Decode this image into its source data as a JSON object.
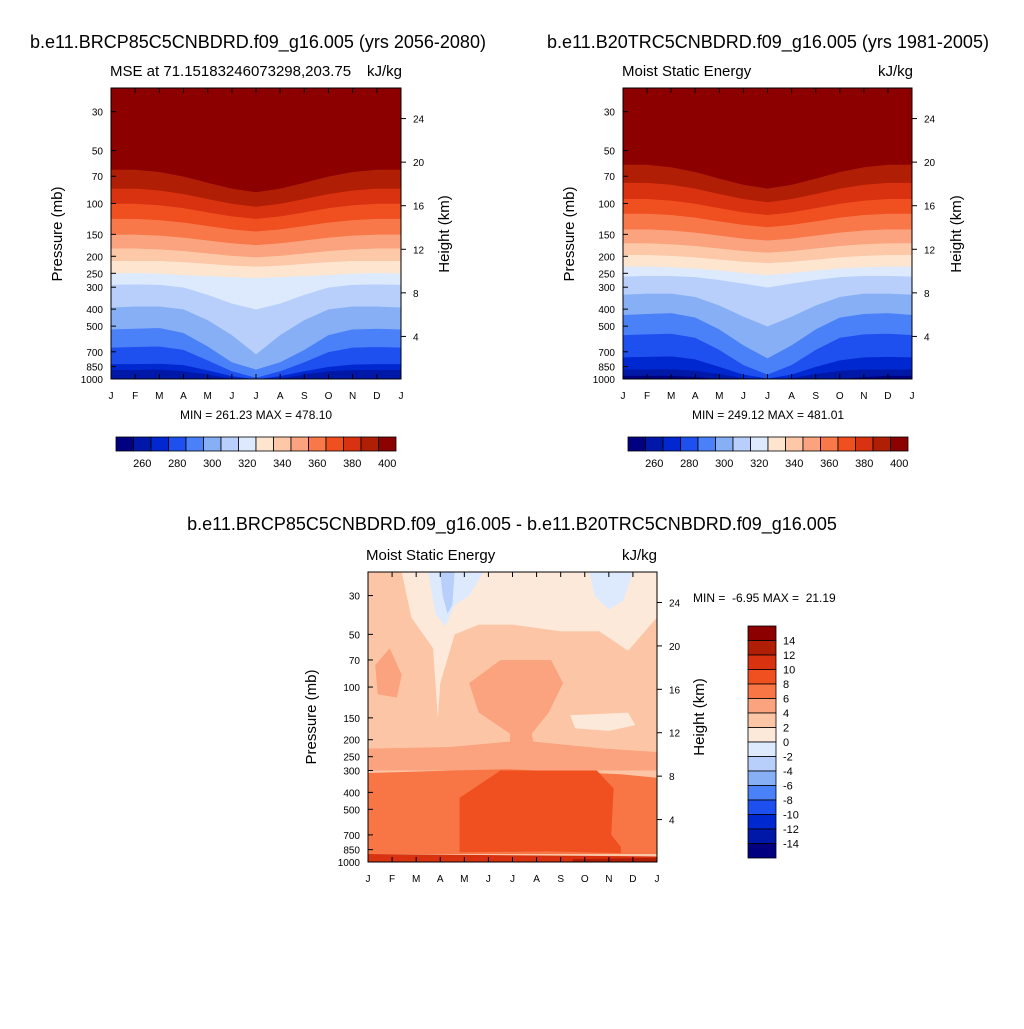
{
  "colors": {
    "ramp_abs": [
      "#000080",
      "#0018a8",
      "#0028d0",
      "#1e50f0",
      "#4a80f8",
      "#86aff6",
      "#b8cffb",
      "#ddeafe",
      "#fde5d0",
      "#fcc8a8",
      "#fba37e",
      "#f8784a",
      "#f05020",
      "#d83210",
      "#b01e06",
      "#8c0000"
    ],
    "ramp_diff": [
      "#000080",
      "#0018a8",
      "#0028d0",
      "#1e50f0",
      "#4a80f8",
      "#86aff6",
      "#b8cffb",
      "#ddeafe",
      "#fde9d9",
      "#fcc6a6",
      "#fba37e",
      "#f87646",
      "#f05020",
      "#d83210",
      "#b01e06",
      "#8c0000"
    ]
  },
  "chart_data": [
    {
      "id": "future",
      "type": "contour",
      "title": "b.e11.BRCP85C5CNBDRD.f09_g16.005 (yrs 2056-2080)",
      "left_label": "MSE at 71.15183246073298,203.75",
      "right_label": "kJ/kg",
      "xlabel": "",
      "ylabel": "Pressure (mb)",
      "y2label": "Height (km)",
      "x_ticks": [
        "J",
        "F",
        "M",
        "A",
        "M",
        "J",
        "J",
        "A",
        "S",
        "O",
        "N",
        "D",
        "J"
      ],
      "y_ticks": [
        "30",
        "50",
        "70",
        "100",
        "150",
        "200",
        "250",
        "300",
        "400",
        "500",
        "700",
        "850",
        "1000"
      ],
      "y2_ticks": [
        "24",
        "20",
        "16",
        "12",
        "8",
        "4"
      ],
      "ylim_mb": [
        1000,
        22
      ],
      "stats": "MIN = 261.23 MAX = 478.10",
      "colorbar_levels": [
        255,
        260,
        265,
        270,
        275,
        280,
        285,
        290,
        295,
        300,
        305,
        310,
        315,
        320,
        325,
        330,
        335,
        340,
        345,
        350,
        355,
        360,
        365,
        370,
        375,
        380,
        385,
        390,
        395,
        400,
        405
      ],
      "colorbar_tick_labels": [
        "260",
        "280",
        "300",
        "320",
        "340",
        "360",
        "380",
        "400"
      ],
      "contour_levels": [
        260,
        270,
        280,
        290,
        300,
        310,
        320,
        330,
        340,
        350,
        360,
        370,
        380,
        390,
        400
      ],
      "boundary_levels_mb": {
        "260": [
          1000,
          1000,
          1000,
          1000,
          1000,
          1000,
          1000,
          1000,
          1000,
          1000,
          1000,
          1000,
          1000
        ],
        "270": [
          885,
          885,
          880,
          900,
          940,
          990,
          1000,
          990,
          940,
          900,
          885,
          885,
          885
        ],
        "280": [
          820,
          820,
          815,
          830,
          890,
          960,
          1000,
          960,
          900,
          850,
          825,
          820,
          820
        ],
        "290": [
          660,
          655,
          650,
          680,
          780,
          900,
          980,
          900,
          800,
          700,
          660,
          655,
          660
        ],
        "300": [
          520,
          515,
          510,
          545,
          650,
          800,
          880,
          800,
          680,
          560,
          520,
          515,
          520
        ],
        "310": [
          390,
          385,
          385,
          400,
          460,
          560,
          720,
          560,
          460,
          400,
          385,
          385,
          390
        ],
        "320": [
          290,
          288,
          290,
          300,
          330,
          370,
          400,
          370,
          330,
          300,
          290,
          288,
          290
        ],
        "330": [
          250,
          248,
          250,
          255,
          258,
          262,
          265,
          262,
          258,
          255,
          250,
          248,
          250
        ],
        "340": [
          212,
          212,
          212,
          215,
          220,
          225,
          228,
          225,
          220,
          215,
          212,
          212,
          212
        ],
        "350": [
          180,
          180,
          182,
          186,
          192,
          198,
          202,
          198,
          192,
          186,
          182,
          180,
          180
        ],
        "360": [
          150,
          150,
          152,
          156,
          162,
          168,
          172,
          168,
          162,
          156,
          152,
          150,
          150
        ],
        "370": [
          122,
          122,
          124,
          128,
          134,
          140,
          144,
          140,
          134,
          128,
          124,
          122,
          122
        ],
        "380": [
          100,
          100,
          102,
          106,
          112,
          118,
          122,
          118,
          112,
          106,
          102,
          100,
          100
        ],
        "390": [
          82,
          82,
          84,
          88,
          94,
          100,
          104,
          100,
          94,
          88,
          84,
          82,
          82
        ],
        "400": [
          64,
          64,
          66,
          70,
          76,
          82,
          86,
          82,
          76,
          70,
          66,
          64,
          64
        ]
      }
    },
    {
      "id": "historical",
      "type": "contour",
      "title": "b.e11.B20TRC5CNBDRD.f09_g16.005 (yrs 1981-2005)",
      "left_label": "Moist Static Energy",
      "right_label": "kJ/kg",
      "xlabel": "",
      "ylabel": "Pressure (mb)",
      "y2label": "Height (km)",
      "x_ticks": [
        "J",
        "F",
        "M",
        "A",
        "M",
        "J",
        "J",
        "A",
        "S",
        "O",
        "N",
        "D",
        "J"
      ],
      "y_ticks": [
        "30",
        "50",
        "70",
        "100",
        "150",
        "200",
        "250",
        "300",
        "400",
        "500",
        "700",
        "850",
        "1000"
      ],
      "y2_ticks": [
        "24",
        "20",
        "16",
        "12",
        "8",
        "4"
      ],
      "ylim_mb": [
        1000,
        22
      ],
      "stats": "MIN = 249.12 MAX = 481.01",
      "colorbar_levels": [
        255,
        260,
        265,
        270,
        275,
        280,
        285,
        290,
        295,
        300,
        305,
        310,
        315,
        320,
        325,
        330,
        335,
        340,
        345,
        350,
        355,
        360,
        365,
        370,
        375,
        380,
        385,
        390,
        395,
        400,
        405
      ],
      "colorbar_tick_labels": [
        "260",
        "280",
        "300",
        "320",
        "340",
        "360",
        "380",
        "400"
      ],
      "contour_levels": [
        260,
        270,
        280,
        290,
        300,
        310,
        320,
        330,
        340,
        350,
        360,
        370,
        380,
        390,
        400
      ],
      "boundary_levels_mb": {
        "260": [
          960,
          960,
          960,
          975,
          1000,
          1000,
          1000,
          1000,
          1000,
          1000,
          975,
          960,
          960
        ],
        "270": [
          880,
          880,
          875,
          895,
          935,
          985,
          1000,
          985,
          935,
          895,
          880,
          880,
          880
        ],
        "280": [
          750,
          745,
          740,
          770,
          850,
          940,
          990,
          940,
          850,
          780,
          750,
          745,
          750
        ],
        "290": [
          560,
          555,
          550,
          580,
          680,
          830,
          940,
          830,
          680,
          580,
          555,
          550,
          560
        ],
        "300": [
          430,
          425,
          420,
          445,
          520,
          640,
          760,
          640,
          520,
          445,
          425,
          420,
          430
        ],
        "310": [
          330,
          325,
          325,
          340,
          380,
          440,
          500,
          440,
          380,
          340,
          325,
          325,
          330
        ],
        "320": [
          260,
          258,
          258,
          262,
          272,
          285,
          300,
          285,
          272,
          262,
          258,
          258,
          260
        ],
        "330": [
          228,
          228,
          230,
          234,
          240,
          248,
          255,
          248,
          240,
          234,
          230,
          228,
          228
        ],
        "340": [
          196,
          196,
          198,
          202,
          208,
          214,
          218,
          214,
          208,
          202,
          198,
          196,
          196
        ],
        "350": [
          168,
          168,
          170,
          174,
          180,
          186,
          190,
          186,
          180,
          174,
          170,
          168,
          168
        ],
        "360": [
          140,
          140,
          142,
          146,
          152,
          158,
          162,
          158,
          152,
          146,
          142,
          140,
          140
        ],
        "370": [
          114,
          114,
          116,
          120,
          126,
          132,
          136,
          132,
          126,
          120,
          116,
          114,
          114
        ],
        "380": [
          94,
          94,
          96,
          100,
          106,
          112,
          116,
          112,
          106,
          100,
          96,
          94,
          94
        ],
        "390": [
          76,
          76,
          78,
          82,
          88,
          94,
          98,
          94,
          88,
          82,
          78,
          76,
          76
        ],
        "400": [
          60,
          60,
          62,
          66,
          72,
          78,
          82,
          78,
          72,
          66,
          62,
          60,
          60
        ]
      }
    },
    {
      "id": "difference",
      "type": "contour",
      "title": "b.e11.BRCP85C5CNBDRD.f09_g16.005 - b.e11.B20TRC5CNBDRD.f09_g16.005",
      "left_label": "Moist Static Energy",
      "right_label": "kJ/kg",
      "xlabel": "",
      "ylabel": "Pressure (mb)",
      "y2label": "Height (km)",
      "x_ticks": [
        "J",
        "F",
        "M",
        "A",
        "M",
        "J",
        "J",
        "A",
        "S",
        "O",
        "N",
        "D",
        "J"
      ],
      "y_ticks": [
        "30",
        "50",
        "70",
        "100",
        "150",
        "200",
        "250",
        "300",
        "400",
        "500",
        "700",
        "850",
        "1000"
      ],
      "y2_ticks": [
        "24",
        "20",
        "16",
        "12",
        "8",
        "4"
      ],
      "ylim_mb": [
        1000,
        22
      ],
      "stats": "MIN =  -6.95 MAX =  21.19",
      "colorbar_levels": [
        -16,
        -14,
        -12,
        -10,
        -8,
        -6,
        -4,
        -2,
        0,
        2,
        4,
        6,
        8,
        10,
        12,
        14,
        16
      ],
      "colorbar_tick_labels": [
        "14",
        "12",
        "10",
        "8",
        "6",
        "4",
        "2",
        "0",
        "-2",
        "-4",
        "-6",
        "-8",
        "-10",
        "-12",
        "-14"
      ],
      "contour_levels": [
        -6,
        -4,
        -2,
        0,
        2,
        4,
        6,
        8
      ],
      "regions": [
        {
          "value": 1,
          "label": "background 0 to 2",
          "poly": [
            [
              0,
              22
            ],
            [
              12,
              22
            ],
            [
              12,
              1000
            ],
            [
              0,
              1000
            ]
          ]
        },
        {
          "value": -1,
          "label": "upper 0 to -2 band",
          "poly": [
            [
              1.4,
              22
            ],
            [
              12,
              22
            ],
            [
              12,
              40
            ],
            [
              10.8,
              62
            ],
            [
              9.6,
              48
            ],
            [
              8,
              48
            ],
            [
              6,
              44
            ],
            [
              4.6,
              44
            ],
            [
              3.6,
              50
            ],
            [
              3.0,
              95
            ],
            [
              2.9,
              150
            ],
            [
              2.7,
              60
            ],
            [
              1.8,
              40
            ]
          ]
        },
        {
          "value": -3,
          "label": "-2 to -4 tongue",
          "poly": [
            [
              2.5,
              22
            ],
            [
              4.8,
              22
            ],
            [
              4.2,
              30
            ],
            [
              3.6,
              34
            ],
            [
              3.2,
              45
            ],
            [
              2.8,
              38
            ]
          ]
        },
        {
          "value": -5,
          "label": "-4 to -6 core",
          "poly": [
            [
              3.0,
              22
            ],
            [
              3.6,
              22
            ],
            [
              3.5,
              34
            ],
            [
              3.3,
              38
            ],
            [
              3.1,
              30
            ]
          ]
        },
        {
          "value": -3,
          "label": "-2 to -4 right patch",
          "poly": [
            [
              9.2,
              22
            ],
            [
              11.0,
              22
            ],
            [
              10.6,
              32
            ],
            [
              10.0,
              36
            ],
            [
              9.4,
              30
            ]
          ]
        },
        {
          "value": -1,
          "label": "0 to -2 right blob",
          "poly": [
            [
              8.4,
              145
            ],
            [
              10.8,
              140
            ],
            [
              11.1,
              165
            ],
            [
              10.0,
              178
            ],
            [
              8.6,
              172
            ]
          ]
        },
        {
          "value": 3,
          "label": "2 to 4 bubble",
          "poly": [
            [
              4.2,
              95
            ],
            [
              5.5,
              70
            ],
            [
              7.6,
              70
            ],
            [
              8.1,
              95
            ],
            [
              7.5,
              140
            ],
            [
              6.8,
              185
            ],
            [
              6.9,
              220
            ],
            [
              5.9,
              225
            ],
            [
              5.9,
              185
            ],
            [
              4.6,
              140
            ]
          ]
        },
        {
          "value": 3,
          "label": "2 to 4 lower band",
          "poly": [
            [
              0,
              225
            ],
            [
              3.4,
              220
            ],
            [
              5.9,
              205
            ],
            [
              6.9,
              205
            ],
            [
              9.8,
              225
            ],
            [
              12,
              235
            ],
            [
              12,
              300
            ],
            [
              0,
              300
            ]
          ]
        },
        {
          "value": 3,
          "label": "2 to 4 left blob",
          "poly": [
            [
              0.3,
              75
            ],
            [
              0.9,
              60
            ],
            [
              1.4,
              85
            ],
            [
              1.2,
              115
            ],
            [
              0.4,
              110
            ]
          ]
        },
        {
          "value": 5,
          "label": "4 to 6",
          "poly": [
            [
              0,
              310
            ],
            [
              3.5,
              300
            ],
            [
              5.8,
              295
            ],
            [
              10.5,
              315
            ],
            [
              12,
              330
            ],
            [
              12,
              900
            ],
            [
              0,
              900
            ]
          ]
        },
        {
          "value": 7,
          "label": "6 to 8",
          "poly": [
            [
              3.8,
              430
            ],
            [
              5.5,
              300
            ],
            [
              9.5,
              300
            ],
            [
              10.2,
              380
            ],
            [
              10.1,
              700
            ],
            [
              10.5,
              820
            ],
            [
              10.5,
              890
            ],
            [
              7.5,
              870
            ],
            [
              3.8,
              880
            ]
          ]
        },
        {
          "value": 9,
          "label": "8 to 10 near surface",
          "poly": [
            [
              0,
              900
            ],
            [
              12,
              930
            ],
            [
              12,
              1000
            ],
            [
              0,
              1000
            ]
          ]
        },
        {
          "value": 11,
          "label": "10 to 12 strip",
          "poly": [
            [
              8.5,
              965
            ],
            [
              12,
              945
            ],
            [
              12,
              1000
            ],
            [
              8.5,
              1000
            ]
          ]
        }
      ]
    }
  ]
}
